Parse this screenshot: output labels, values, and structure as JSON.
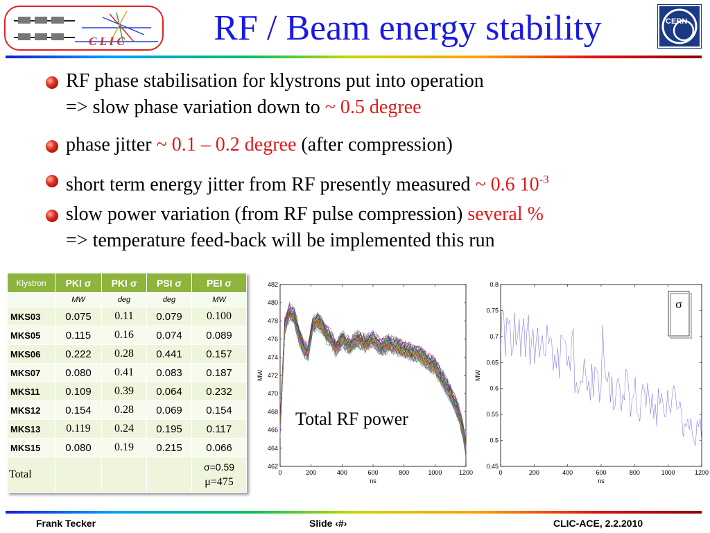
{
  "header": {
    "title": "RF / Beam energy stability",
    "logo_text": "C L I C",
    "cern_text": "CERN"
  },
  "bullets": [
    {
      "lines": [
        {
          "parts": [
            {
              "t": "RF phase stabilisation for klystrons put into operation"
            }
          ]
        },
        {
          "parts": [
            {
              "t": "=> slow phase variation down to "
            },
            {
              "t": "~ 0.5 degree",
              "red": true
            }
          ]
        }
      ]
    },
    {
      "lines": [
        {
          "parts": [
            {
              "t": "phase jitter "
            },
            {
              "t": "~ 0.1 – 0.2 degree",
              "red": true
            },
            {
              "t": " (after compression)"
            }
          ]
        }
      ]
    },
    {
      "lines": [
        {
          "parts": [
            {
              "t": "short term energy jitter from RF presently measured  "
            },
            {
              "t": "~ 0.6 10",
              "red": true
            },
            {
              "t": "-3",
              "red": true,
              "sup": true
            }
          ]
        }
      ]
    },
    {
      "lines": [
        {
          "parts": [
            {
              "t": "slow power variation (from RF pulse compression) "
            },
            {
              "t": "several %",
              "red": true
            }
          ]
        },
        {
          "parts": [
            {
              "t": "=> temperature feed-back will be implemented this run"
            }
          ]
        }
      ]
    }
  ],
  "table": {
    "headers": [
      "Klystron",
      "PKI σ",
      "PKI σ",
      "PSI σ",
      "PEI σ"
    ],
    "units": [
      "",
      "MW",
      "deg",
      "deg",
      "MW"
    ],
    "rows": [
      [
        "MKS03",
        "0.075",
        "0.11",
        "0.079",
        "0.100"
      ],
      [
        "MKS05",
        "0.115",
        "0.16",
        "0.074",
        "0.089"
      ],
      [
        "MKS06",
        "0.222",
        "0.28",
        "0.441",
        "0.157"
      ],
      [
        "MKS07",
        "0.080",
        "0.41",
        "0.083",
        "0.187"
      ],
      [
        "MKS11",
        "0.109",
        "0.39",
        "0.064",
        "0.232"
      ],
      [
        "MKS12",
        "0.154",
        "0.28",
        "0.069",
        "0.154"
      ],
      [
        "MKS13",
        "0.119",
        "0.24",
        "0.195",
        "0.117"
      ],
      [
        "MKS15",
        "0.080",
        "0.19",
        "0.215",
        "0.066"
      ]
    ],
    "total_label": "Total",
    "total_sigma": "σ=0.59",
    "total_mu": "μ=475"
  },
  "chart_data": [
    {
      "type": "line",
      "annotation": "Total RF power",
      "xlabel": "ns",
      "ylabel": "MW",
      "xlim": [
        0,
        1200
      ],
      "ylim": [
        462,
        482
      ],
      "xticks": [
        "0",
        "200",
        "400",
        "600",
        "800",
        "1000",
        "1200"
      ],
      "yticks": [
        "462",
        "464",
        "466",
        "468",
        "470",
        "472",
        "474",
        "476",
        "478",
        "480",
        "482"
      ],
      "x": [
        0,
        30,
        60,
        90,
        120,
        150,
        180,
        210,
        240,
        270,
        300,
        330,
        360,
        400,
        450,
        500,
        550,
        600,
        650,
        700,
        750,
        800,
        850,
        900,
        950,
        1000,
        1050,
        1100,
        1150,
        1180,
        1200
      ],
      "mean": [
        466,
        477.5,
        479,
        478.5,
        476.5,
        475,
        474.5,
        477.5,
        478,
        477.5,
        476.5,
        476,
        475,
        476,
        475.2,
        476,
        475.5,
        476,
        475,
        475.5,
        475.2,
        474.8,
        474.5,
        474.3,
        473.5,
        473,
        471.5,
        470,
        468,
        466,
        463.8
      ],
      "spread": 1.0
    },
    {
      "type": "line",
      "ylabel": "MW",
      "xlabel": "ns",
      "legend": "σ",
      "xlim": [
        0,
        1200
      ],
      "ylim": [
        0.45,
        0.8
      ],
      "xticks": [
        "0",
        "200",
        "400",
        "600",
        "800",
        "1000",
        "1200"
      ],
      "yticks": [
        "0.45",
        "0.5",
        "0.55",
        "0.6",
        "0.65",
        "0.7",
        "0.75",
        "0.8"
      ],
      "x": [
        0,
        100,
        200,
        300,
        400,
        500,
        600,
        700,
        800,
        900,
        1000,
        1100,
        1150,
        1180,
        1200
      ],
      "mean": [
        0.71,
        0.72,
        0.69,
        0.68,
        0.66,
        0.64,
        0.62,
        0.6,
        0.59,
        0.58,
        0.57,
        0.55,
        0.54,
        0.52,
        0.5
      ],
      "spread": 0.045
    }
  ],
  "footer": {
    "left": "Frank Tecker",
    "center": "Slide ‹#›",
    "right": "CLIC-ACE, 2.2.2010"
  },
  "colors": {
    "title": "#1a1ae6",
    "accent_red": "#e01818",
    "table_header": "#8db43c"
  }
}
